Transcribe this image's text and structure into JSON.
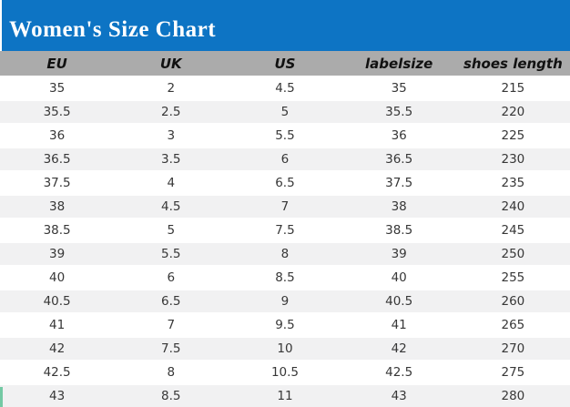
{
  "title": "Women's Size Chart",
  "colors": {
    "title_bar_bg": "#0d74c4",
    "title_text": "#ffffff",
    "header_row_bg": "#ababab",
    "header_row_text": "#111111",
    "row_bg": "#ffffff",
    "row_alt_bg": "#f1f1f2",
    "cell_text": "#373737",
    "left_accent": "#74c9a4"
  },
  "chart_data": {
    "type": "table",
    "title": "Women's Size Chart",
    "columns": [
      "EU",
      "UK",
      "US",
      "labelsize",
      "shoes length"
    ],
    "rows": [
      [
        "35",
        "2",
        "4.5",
        "35",
        "215"
      ],
      [
        "35.5",
        "2.5",
        "5",
        "35.5",
        "220"
      ],
      [
        "36",
        "3",
        "5.5",
        "36",
        "225"
      ],
      [
        "36.5",
        "3.5",
        "6",
        "36.5",
        "230"
      ],
      [
        "37.5",
        "4",
        "6.5",
        "37.5",
        "235"
      ],
      [
        "38",
        "4.5",
        "7",
        "38",
        "240"
      ],
      [
        "38.5",
        "5",
        "7.5",
        "38.5",
        "245"
      ],
      [
        "39",
        "5.5",
        "8",
        "39",
        "250"
      ],
      [
        "40",
        "6",
        "8.5",
        "40",
        "255"
      ],
      [
        "40.5",
        "6.5",
        "9",
        "40.5",
        "260"
      ],
      [
        "41",
        "7",
        "9.5",
        "41",
        "265"
      ],
      [
        "42",
        "7.5",
        "10",
        "42",
        "270"
      ],
      [
        "42.5",
        "8",
        "10.5",
        "42.5",
        "275"
      ],
      [
        "43",
        "8.5",
        "11",
        "43",
        "280"
      ]
    ]
  }
}
